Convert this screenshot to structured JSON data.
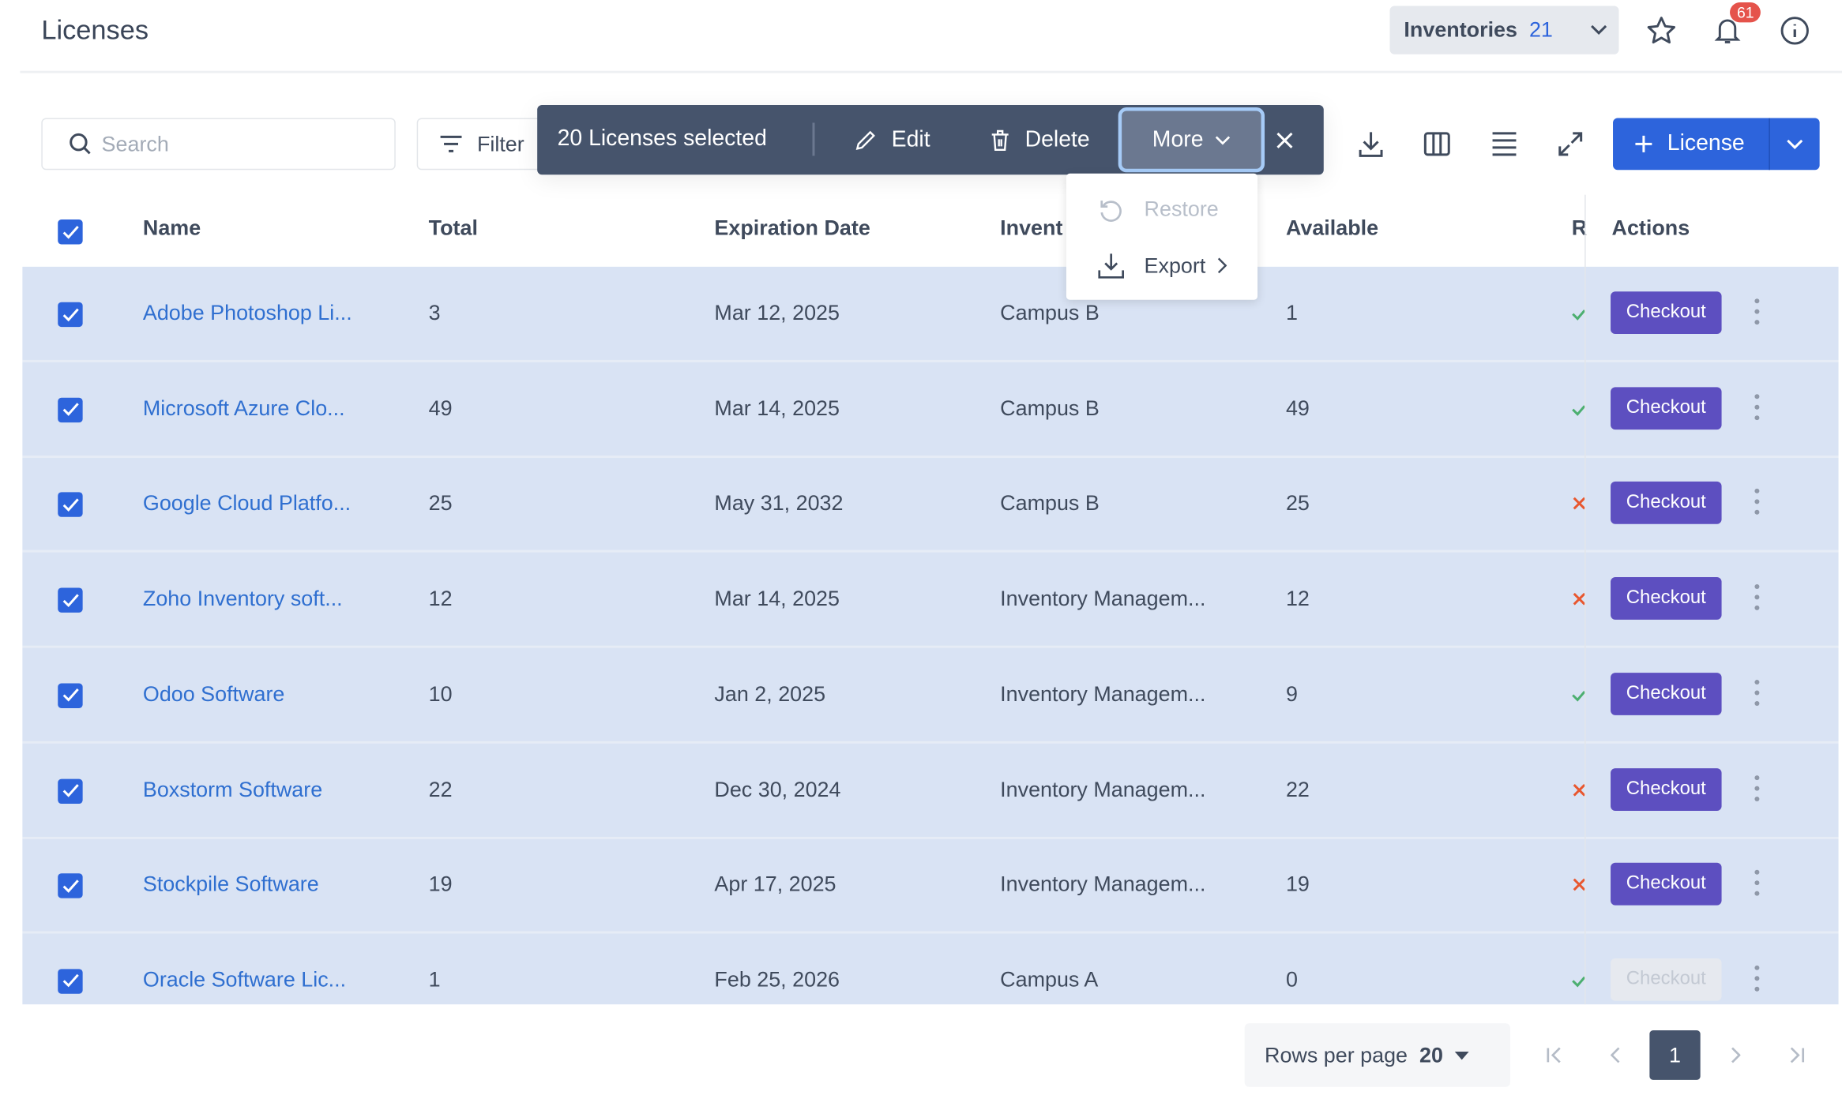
{
  "header": {
    "title": "Licenses",
    "inventories_label": "Inventories",
    "inventories_count": "21",
    "notification_count": "61"
  },
  "toolbar": {
    "search_placeholder": "Search",
    "filter_label": "Filter",
    "add_label": "License"
  },
  "bulk": {
    "selected_text": "20 Licenses selected",
    "edit_label": "Edit",
    "delete_label": "Delete",
    "more_label": "More"
  },
  "more_menu": [
    {
      "label": "Restore",
      "disabled": true
    },
    {
      "label": "Export",
      "disabled": false
    }
  ],
  "table": {
    "columns": [
      "Name",
      "Total",
      "Expiration Date",
      "Invent",
      "Available",
      "R",
      "Actions"
    ],
    "action_label": "Checkout",
    "rows": [
      {
        "name": "Adobe Photoshop Li...",
        "total": "3",
        "expiration": "Mar 12, 2025",
        "inventory": "Campus B",
        "available": "1",
        "reassignable": true,
        "checkout_enabled": true
      },
      {
        "name": "Microsoft Azure Clo...",
        "total": "49",
        "expiration": "Mar 14, 2025",
        "inventory": "Campus B",
        "available": "49",
        "reassignable": true,
        "checkout_enabled": true
      },
      {
        "name": "Google Cloud Platfo...",
        "total": "25",
        "expiration": "May 31, 2032",
        "inventory": "Campus B",
        "available": "25",
        "reassignable": false,
        "checkout_enabled": true
      },
      {
        "name": "Zoho Inventory soft...",
        "total": "12",
        "expiration": "Mar 14, 2025",
        "inventory": "Inventory Managem...",
        "available": "12",
        "reassignable": false,
        "checkout_enabled": true
      },
      {
        "name": "Odoo Software",
        "total": "10",
        "expiration": "Jan 2, 2025",
        "inventory": "Inventory Managem...",
        "available": "9",
        "reassignable": true,
        "checkout_enabled": true
      },
      {
        "name": "Boxstorm Software",
        "total": "22",
        "expiration": "Dec 30, 2024",
        "inventory": "Inventory Managem...",
        "available": "22",
        "reassignable": false,
        "checkout_enabled": true
      },
      {
        "name": "Stockpile Software",
        "total": "19",
        "expiration": "Apr 17, 2025",
        "inventory": "Inventory Managem...",
        "available": "19",
        "reassignable": false,
        "checkout_enabled": true
      },
      {
        "name": "Oracle Software Lic...",
        "total": "1",
        "expiration": "Feb 25, 2026",
        "inventory": "Campus A",
        "available": "0",
        "reassignable": true,
        "checkout_enabled": false
      }
    ]
  },
  "pagination": {
    "rows_per_page_label": "Rows per page",
    "rows_per_page": "20",
    "current_page": "1"
  },
  "colors": {
    "primary": "#2d64dc",
    "checkout": "#5d4fc0",
    "toolbar": "#46546c",
    "selected_row": "#d9e3f4",
    "yes": "#4caf70",
    "no": "#e8572f"
  }
}
